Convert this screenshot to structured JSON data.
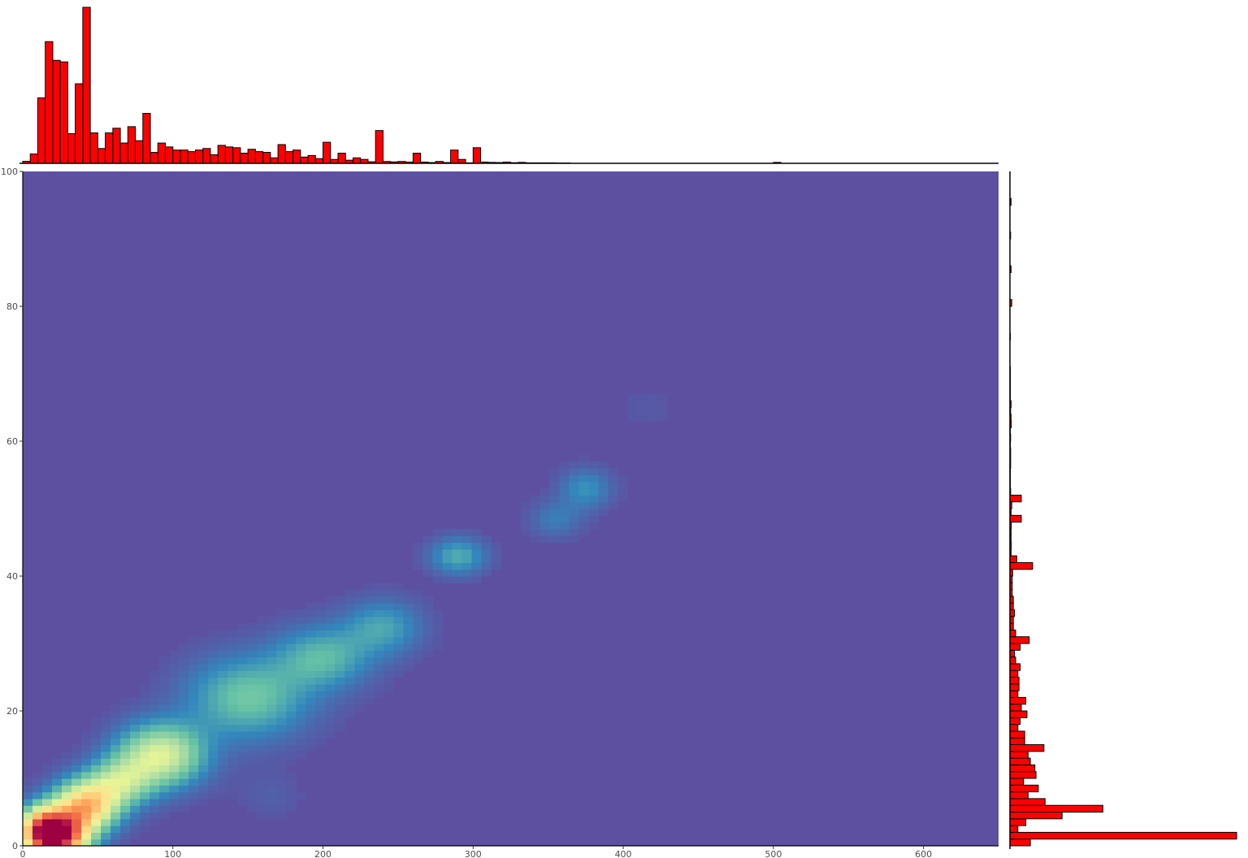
{
  "chart_data": [
    {
      "type": "heatmap",
      "title": "",
      "xlabel": "",
      "ylabel": "",
      "xlim": [
        0,
        650
      ],
      "ylim": [
        0,
        100
      ],
      "x_ticks": [
        "0",
        "100",
        "200",
        "300",
        "400",
        "500",
        "600"
      ],
      "y_ticks": [
        "0",
        "20",
        "40",
        "60",
        "80",
        "100"
      ],
      "grid": false,
      "colors": {
        "background": "#5e50a1",
        "scale": [
          "#5e50a1",
          "#3288bd",
          "#66c2a5",
          "#abdda4",
          "#e6f598",
          "#fee08b",
          "#fdae61",
          "#f46d43",
          "#d53e4f",
          "#9e0142"
        ]
      },
      "density_peaks": [
        {
          "x": 22,
          "y": 1.5,
          "density": 1.0,
          "sx": 14,
          "sy": 2.4
        },
        {
          "x": 42,
          "y": 6,
          "density": 0.6,
          "sx": 15,
          "sy": 2.6
        },
        {
          "x": 12,
          "y": 3,
          "density": 0.35,
          "sx": 10,
          "sy": 2.2
        },
        {
          "x": 92,
          "y": 13.5,
          "density": 0.42,
          "sx": 20,
          "sy": 3.2
        },
        {
          "x": 65,
          "y": 9.5,
          "density": 0.3,
          "sx": 15,
          "sy": 2.5
        },
        {
          "x": 150,
          "y": 22,
          "density": 0.24,
          "sx": 28,
          "sy": 4.2
        },
        {
          "x": 200,
          "y": 28,
          "density": 0.2,
          "sx": 22,
          "sy": 3.2
        },
        {
          "x": 240,
          "y": 32.5,
          "density": 0.16,
          "sx": 18,
          "sy": 2.8
        },
        {
          "x": 290,
          "y": 43,
          "density": 0.18,
          "sx": 13,
          "sy": 1.9
        },
        {
          "x": 355,
          "y": 48.5,
          "density": 0.09,
          "sx": 12,
          "sy": 1.9
        },
        {
          "x": 375,
          "y": 53,
          "density": 0.13,
          "sx": 12,
          "sy": 2.1
        },
        {
          "x": 165,
          "y": 7.5,
          "density": 0.03,
          "sx": 15,
          "sy": 2.5
        },
        {
          "x": 415,
          "y": 65,
          "density": 0.02,
          "sx": 15,
          "sy": 2.5
        }
      ]
    },
    {
      "type": "bar",
      "orientation": "vertical",
      "title": "",
      "bin_width": 5,
      "xlim": [
        0,
        650
      ],
      "ylim": [
        0,
        100
      ],
      "bin_starts": [
        0,
        5,
        10,
        15,
        20,
        25,
        30,
        35,
        40,
        45,
        50,
        55,
        60,
        65,
        70,
        75,
        80,
        85,
        90,
        95,
        100,
        105,
        110,
        115,
        120,
        125,
        130,
        135,
        140,
        145,
        150,
        155,
        160,
        165,
        170,
        175,
        180,
        185,
        190,
        195,
        200,
        205,
        210,
        215,
        220,
        225,
        230,
        235,
        240,
        245,
        250,
        255,
        260,
        265,
        270,
        275,
        280,
        285,
        290,
        295,
        300,
        305,
        310,
        315,
        320,
        325,
        330,
        335,
        340,
        345,
        350,
        355,
        360,
        500
      ],
      "values": [
        1.3,
        6,
        42,
        78,
        66,
        65,
        19,
        51,
        100,
        19.5,
        9.5,
        19.5,
        22.5,
        13,
        23.5,
        14.5,
        32,
        7,
        13,
        10.5,
        8.5,
        8.5,
        7.5,
        8.5,
        9.5,
        5.5,
        11.5,
        10.5,
        10,
        6.5,
        9,
        7.5,
        7,
        3.5,
        12,
        7.5,
        8.5,
        4,
        5,
        3,
        13.5,
        2.5,
        6.5,
        2,
        3.5,
        2.5,
        1,
        21,
        1.2,
        0.9,
        1.2,
        0.8,
        6.5,
        0.8,
        0.5,
        1.2,
        0.5,
        8.5,
        2.5,
        0.3,
        10,
        0.8,
        0.6,
        0.5,
        0.8,
        0.4,
        0.6,
        0.3,
        0.3,
        0.3,
        0.3,
        0.2,
        0.2,
        0.6
      ]
    },
    {
      "type": "bar",
      "orientation": "horizontal",
      "title": "",
      "bin_width": 1,
      "ylim": [
        0,
        100
      ],
      "xlim": [
        0,
        100
      ],
      "bin_starts": [
        0,
        1,
        2,
        3,
        4,
        5,
        6,
        7,
        8,
        9,
        10,
        11,
        12,
        13,
        14,
        15,
        16,
        17,
        18,
        19,
        20,
        21,
        22,
        23,
        24,
        25,
        26,
        27,
        28,
        29,
        30,
        31,
        32,
        33,
        34,
        35,
        36,
        37,
        38,
        39,
        40,
        41,
        42,
        43,
        44,
        45,
        46,
        47,
        48,
        49,
        50,
        51,
        52,
        53,
        54,
        55,
        56,
        57,
        58,
        59,
        60,
        61,
        62,
        63,
        64,
        65,
        66,
        67,
        68,
        69,
        70,
        75,
        80,
        85,
        90,
        95
      ],
      "values": [
        9,
        100,
        3.5,
        7,
        23,
        41,
        15.5,
        8,
        12.5,
        6,
        11.5,
        11,
        9,
        8,
        15,
        6.5,
        6.5,
        3.5,
        4.5,
        7.5,
        5,
        7,
        3.5,
        4,
        4,
        3.5,
        4.5,
        2.5,
        2,
        4.5,
        8.5,
        2.5,
        1.5,
        1.5,
        2,
        1.5,
        1.5,
        1,
        1,
        1,
        1.2,
        10,
        3,
        0.5,
        0.6,
        0.5,
        0.5,
        0.6,
        5,
        0.5,
        0.8,
        5,
        0.3,
        0.2,
        0.2,
        0.2,
        0.3,
        0.3,
        0.3,
        0.2,
        0.3,
        0.2,
        0.6,
        0.5,
        0.3,
        0.5,
        0.2,
        0.2,
        0.2,
        0.2,
        0.2,
        0.2,
        0.8,
        0.5,
        0.3,
        0.5
      ]
    }
  ]
}
